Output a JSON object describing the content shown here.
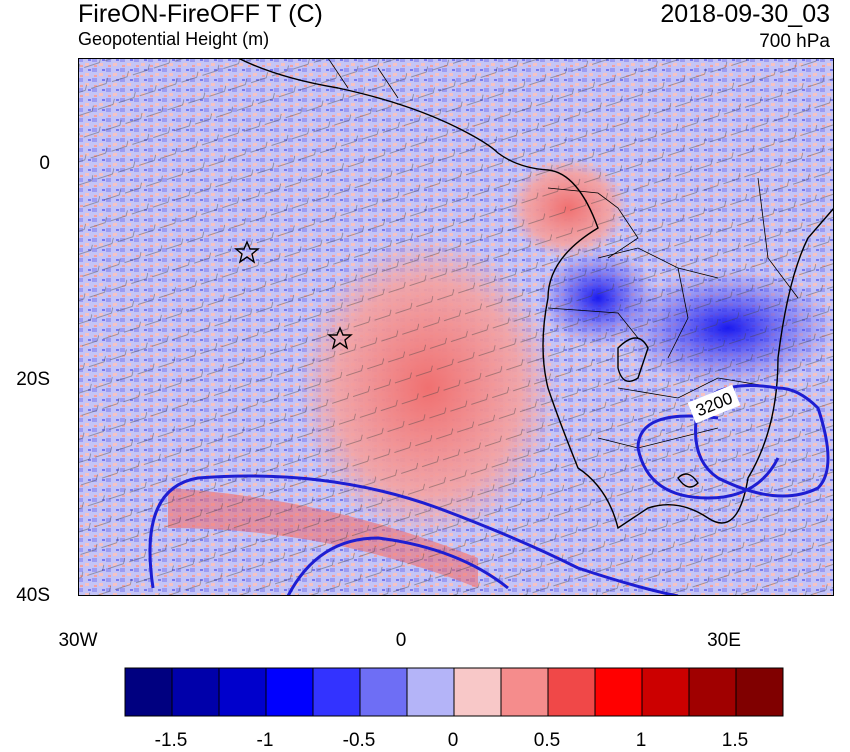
{
  "header": {
    "title": "FireON-FireOFF T (C)",
    "subtitle": "Geopotential Height (m)",
    "datetime": "2018-09-30_03",
    "level": "700 hPa"
  },
  "map": {
    "lat_labels": [
      "0",
      "20S",
      "40S"
    ],
    "lon_labels": [
      "30W",
      "0",
      "30E"
    ],
    "contour_label": "3200",
    "markers": [
      "star",
      "star"
    ]
  },
  "colorbar": {
    "colors": [
      "#000080",
      "#0000aa",
      "#0000cc",
      "#0000ff",
      "#3333ff",
      "#6e6ef5",
      "#b4b4f8",
      "#f8c8c8",
      "#f58c8c",
      "#f04848",
      "#ff0000",
      "#cc0000",
      "#a00000",
      "#800000"
    ],
    "labels": [
      "-1.5",
      "-1",
      "-0.5",
      "0",
      "0.5",
      "1",
      "1.5"
    ]
  },
  "palette": {
    "land_outline": "#000000",
    "contour": "#1e1ed2",
    "warm": "#f08080",
    "cool": "#8a8af0"
  }
}
